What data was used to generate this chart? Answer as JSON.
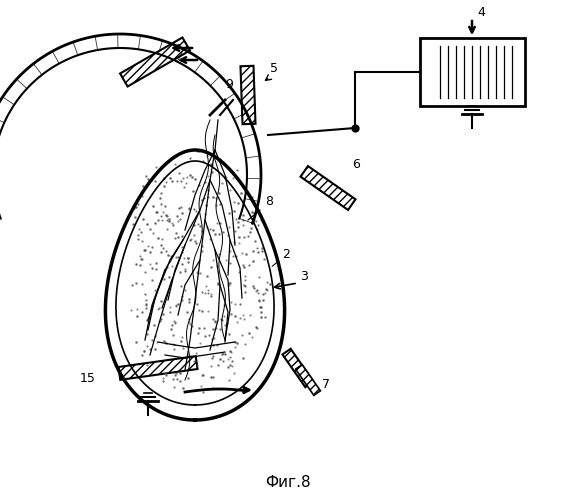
{
  "title": "Фиг.8",
  "bg_color": "#ffffff",
  "line_color": "#000000",
  "fig_width": 5.75,
  "fig_height": 5.0,
  "dpi": 100
}
